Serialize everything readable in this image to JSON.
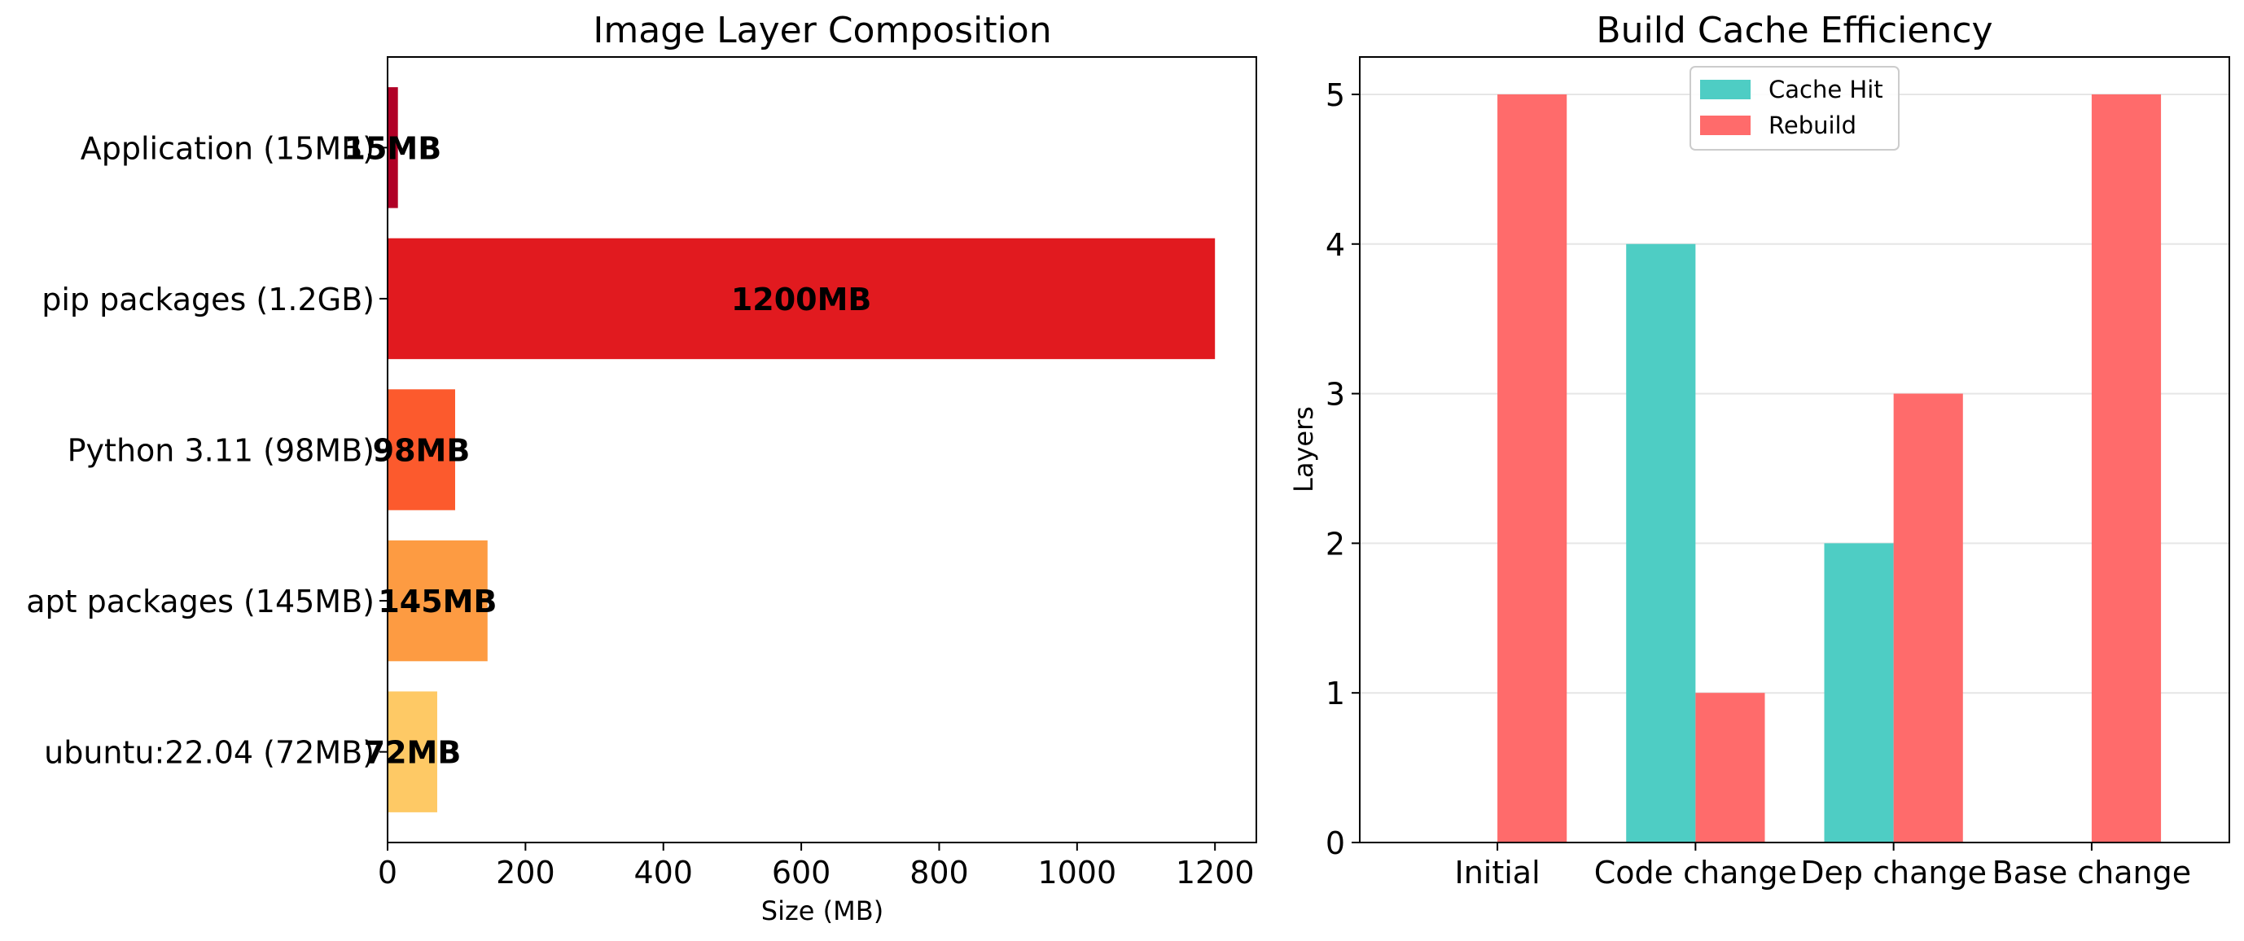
{
  "chart_data": [
    {
      "type": "bar",
      "orientation": "horizontal",
      "title": "Image Layer Composition",
      "xlabel": "Size (MB)",
      "ylabel": "",
      "xlim": [
        0,
        1260
      ],
      "xticks": [
        0,
        200,
        400,
        600,
        800,
        1000,
        1200
      ],
      "categories": [
        "ubuntu:22.04 (72MB)",
        "apt packages (145MB)",
        "Python 3.11 (98MB)",
        "pip packages (1.2GB)",
        "Application (15MB)"
      ],
      "values": [
        72,
        145,
        98,
        1200,
        15
      ],
      "data_labels": [
        "72MB",
        "145MB",
        "98MB",
        "1200MB",
        "15MB"
      ],
      "colors": [
        "#fec965",
        "#fd9b42",
        "#fc5a2d",
        "#e11a1f",
        "#b00026"
      ],
      "grid": false
    },
    {
      "type": "bar",
      "title": "Build Cache Efficiency",
      "xlabel": "",
      "ylabel": "Layers",
      "ylim": [
        0,
        5.25
      ],
      "yticks": [
        0,
        1,
        2,
        3,
        4,
        5
      ],
      "categories": [
        "Initial",
        "Code change",
        "Dep change",
        "Base change"
      ],
      "series": [
        {
          "name": "Cache Hit",
          "values": [
            0,
            4,
            2,
            0
          ],
          "color": "#4ecdc4"
        },
        {
          "name": "Rebuild",
          "values": [
            5,
            1,
            3,
            5
          ],
          "color": "#ff6b6b"
        }
      ],
      "legend": "top-center",
      "grid": "horizontal"
    }
  ]
}
